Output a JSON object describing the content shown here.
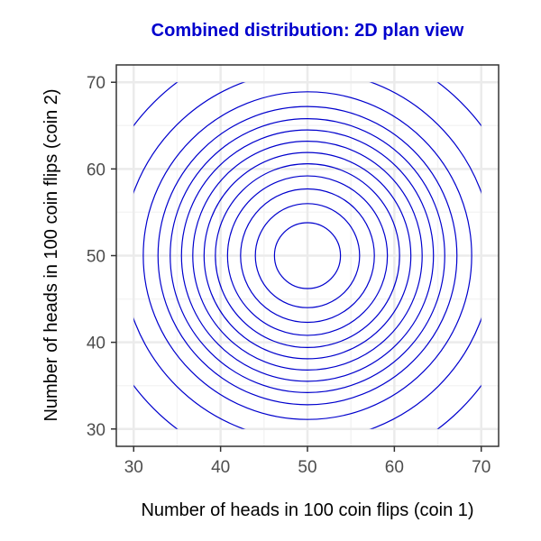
{
  "chart_data": {
    "type": "contour",
    "title": "Combined distribution: 2D plan view",
    "xlabel": "Number of heads in 100 coin flips (coin 1)",
    "ylabel": "Number of heads in 100 coin flips (coin 2)",
    "xlim": [
      28,
      72
    ],
    "ylim": [
      28,
      72
    ],
    "xticks": [
      "30",
      "40",
      "50",
      "60",
      "70"
    ],
    "yticks": [
      "30",
      "40",
      "50",
      "60",
      "70"
    ],
    "x_tick_values": [
      30,
      40,
      50,
      60,
      70
    ],
    "y_tick_values": [
      30,
      40,
      50,
      60,
      70
    ],
    "center": [
      50,
      50
    ],
    "contour_radii": [
      3.8,
      6.0,
      7.7,
      9.2,
      10.6,
      11.9,
      13.2,
      14.5,
      15.8,
      17.2,
      18.9,
      21.3,
      25.0
    ],
    "grid": true,
    "colors": {
      "contour": "#0000cd",
      "title": "#0000cd",
      "grid_major": "#ebebeb",
      "grid_minor": "#f4f4f4",
      "panel_border": "#333333"
    }
  }
}
